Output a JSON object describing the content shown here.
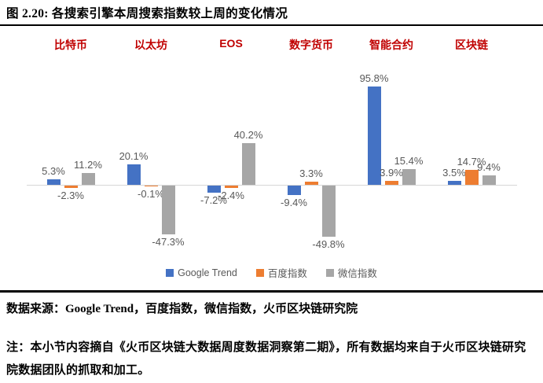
{
  "title": "图 2.20: 各搜索引擎本周搜索指数较上周的变化情况",
  "chart_data": {
    "type": "bar",
    "title": "各搜索引擎本周搜索指数较上周的变化情况",
    "categories": [
      "比特币",
      "以太坊",
      "EOS",
      "数字货币",
      "智能合约",
      "区块链"
    ],
    "series": [
      {
        "name": "Google Trend",
        "color": "#4472C4",
        "values": [
          5.3,
          20.1,
          -7.2,
          -9.4,
          95.8,
          3.5
        ]
      },
      {
        "name": "百度指数",
        "color": "#ED7D31",
        "values": [
          -2.3,
          -0.1,
          -2.4,
          3.3,
          3.9,
          14.7
        ]
      },
      {
        "name": "微信指数",
        "color": "#A6A6A6",
        "values": [
          11.2,
          -47.3,
          40.2,
          -49.8,
          15.4,
          9.4
        ]
      }
    ],
    "value_label_format": "{value}%",
    "unit": "%",
    "ylim": [
      -60,
      105
    ],
    "grid": false,
    "legend_position": "bottom",
    "category_label_color": "#C00000",
    "value_label_color": "#595959",
    "axis_color": "#D6D6D6"
  },
  "footer": {
    "source": "数据来源：Google Trend，百度指数，微信指数，火币区块链研究院",
    "note": "注：本小节内容摘自《火币区块链大数据周度数据洞察第二期》，所有数据均来自于火币区块链研究院数据团队的抓取和加工。"
  }
}
